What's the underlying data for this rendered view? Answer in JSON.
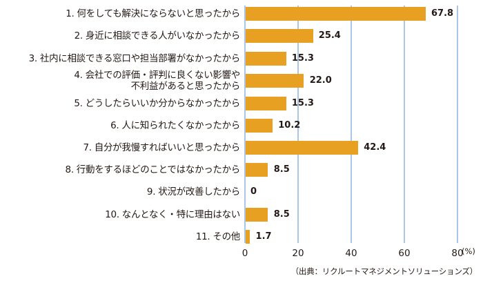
{
  "chart_data": {
    "type": "bar",
    "orientation": "horizontal",
    "title": "",
    "xlabel": "",
    "ylabel": "",
    "unit": "(%)",
    "xlim": [
      0,
      80
    ],
    "xticks": [
      0,
      20,
      40,
      60,
      80
    ],
    "grid": true,
    "bar_color": "#E8A023",
    "grid_color": "#A9C6E6",
    "categories": [
      "1. 何をしても解決にならないと思ったから",
      "2. 身近に相談できる人がいなかったから",
      "3. 社内に相談できる窓口や担当部署がなかったから",
      "4. 会社での評価・評判に良くない影響や\n不利益があると思ったから",
      "5. どうしたらいいか分からなかったから",
      "6. 人に知られたくなかったから",
      "7. 自分が我慢すればいいと思ったから",
      "8. 行動をするほどのことではなかったから",
      "9. 状況が改善したから",
      "10. なんとなく・特に理由はない",
      "11. その他"
    ],
    "values": [
      67.8,
      25.4,
      15.3,
      22.0,
      15.3,
      10.2,
      42.4,
      8.5,
      0,
      8.5,
      1.7
    ],
    "value_labels": [
      "67.8",
      "25.4",
      "15.3",
      "22.0",
      "15.3",
      "10.2",
      "42.4",
      "8.5",
      "0",
      "8.5",
      "1.7"
    ],
    "source": "（出典：リクルートマネジメントソリューションズ）"
  },
  "axis": {
    "tick_labels": [
      "0",
      "20",
      "40",
      "60",
      "80"
    ],
    "unit_label": "(%)"
  },
  "source_note": "（出典：リクルートマネジメントソリューションズ）"
}
